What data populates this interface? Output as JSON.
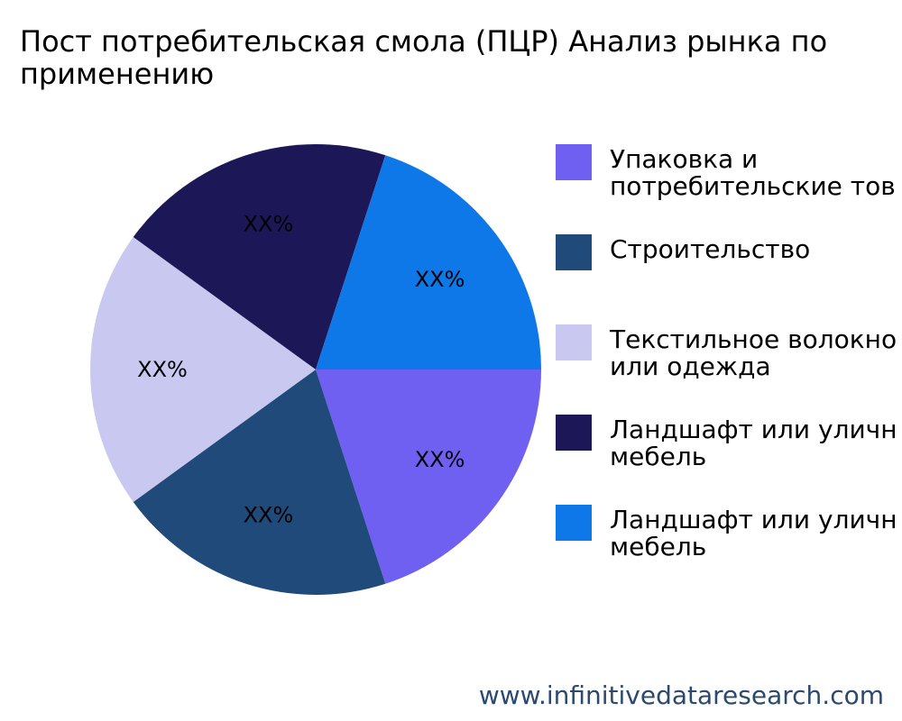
{
  "chart_data": {
    "type": "pie",
    "title": "Пост потребительская смола (ПЦР) Анализ рынка по применению",
    "categories": [
      "Упаковка и\nпотребительские тов",
      "Строительство",
      "Текстильное волокно\nили одежда",
      "Ландшафт или уличн\nмебель",
      "Ландшафт или уличн\nмебель"
    ],
    "values": [
      20,
      20,
      20,
      20,
      20
    ],
    "data_labels": [
      "XX%",
      "XX%",
      "XX%",
      "XX%",
      "XX%"
    ],
    "colors": [
      "#7060f2",
      "#1f4a7a",
      "#c8c8f0",
      "#1c1858",
      "#0f78e8"
    ],
    "legend_position": "right",
    "start_angle_deg": 0,
    "direction": "clockwise"
  },
  "footer": {
    "url": "www.infinitivedataresearch.com"
  }
}
